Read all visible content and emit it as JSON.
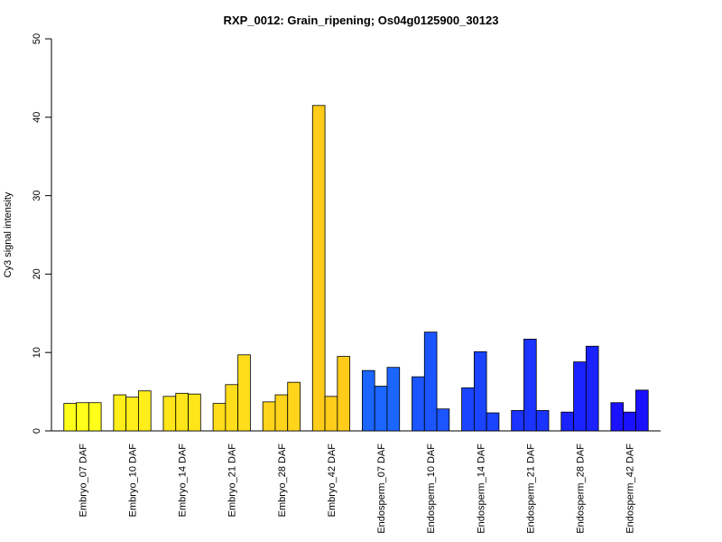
{
  "chart_data": {
    "type": "bar",
    "title": "RXP_0012: Grain_ripening; Os04g0125900_30123",
    "ylabel": "Cy3 signal intensity",
    "xlabel": "",
    "ylim": [
      0,
      50
    ],
    "yticks": [
      0,
      10,
      20,
      30,
      40,
      50
    ],
    "grid": false,
    "legend": "none",
    "categories": [
      {
        "label": "Embryo_07 DAF",
        "values": [
          3.5,
          3.6,
          3.6
        ],
        "color": "#ffff1a"
      },
      {
        "label": "Embryo_10 DAF",
        "values": [
          4.6,
          4.3,
          5.1
        ],
        "color": "#ffee1a"
      },
      {
        "label": "Embryo_14 DAF",
        "values": [
          4.4,
          4.8,
          4.7
        ],
        "color": "#ffe61a"
      },
      {
        "label": "Embryo_21 DAF",
        "values": [
          3.5,
          5.9,
          9.7
        ],
        "color": "#ffdd1a"
      },
      {
        "label": "Embryo_28 DAF",
        "values": [
          3.7,
          4.6,
          6.2
        ],
        "color": "#ffd41a"
      },
      {
        "label": "Embryo_42 DAF",
        "values": [
          41.5,
          4.4,
          9.5
        ],
        "color": "#ffcc1a"
      },
      {
        "label": "Endosperm_07 DAF",
        "values": [
          7.7,
          5.7,
          8.1
        ],
        "color": "#1a66ff"
      },
      {
        "label": "Endosperm_10 DAF",
        "values": [
          6.9,
          12.6,
          2.8
        ],
        "color": "#1a55ff"
      },
      {
        "label": "Endosperm_14 DAF",
        "values": [
          5.5,
          10.1,
          2.3
        ],
        "color": "#1a44ff"
      },
      {
        "label": "Endosperm_21 DAF",
        "values": [
          2.6,
          11.7,
          2.6
        ],
        "color": "#1a33ff"
      },
      {
        "label": "Endosperm_28 DAF",
        "values": [
          2.4,
          8.8,
          10.8
        ],
        "color": "#1a22ff"
      },
      {
        "label": "Endosperm_42 DAF",
        "values": [
          3.6,
          2.4,
          5.2
        ],
        "color": "#1a11ff"
      }
    ]
  }
}
